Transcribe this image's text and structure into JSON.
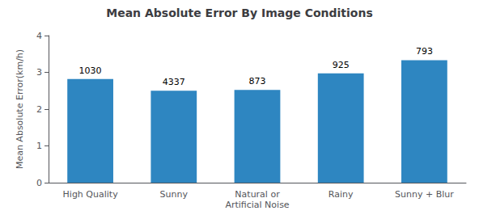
{
  "chart_data": {
    "type": "bar",
    "title": "Mean Absolute Error By Image Conditions",
    "ylabel": "Mean Absolute Error(km/h)",
    "categories": [
      "High Quality",
      "Sunny",
      "Natural or\nArtificial Noise",
      "Rainy",
      "Sunny + Blur"
    ],
    "values": [
      2.82,
      2.5,
      2.52,
      2.97,
      3.33
    ],
    "counts": [
      1030,
      4337,
      873,
      925,
      793
    ],
    "color": "#2e86c1",
    "ylim": [
      0,
      4
    ],
    "yticks": [
      0,
      1,
      2,
      3,
      4
    ],
    "grid": false
  }
}
